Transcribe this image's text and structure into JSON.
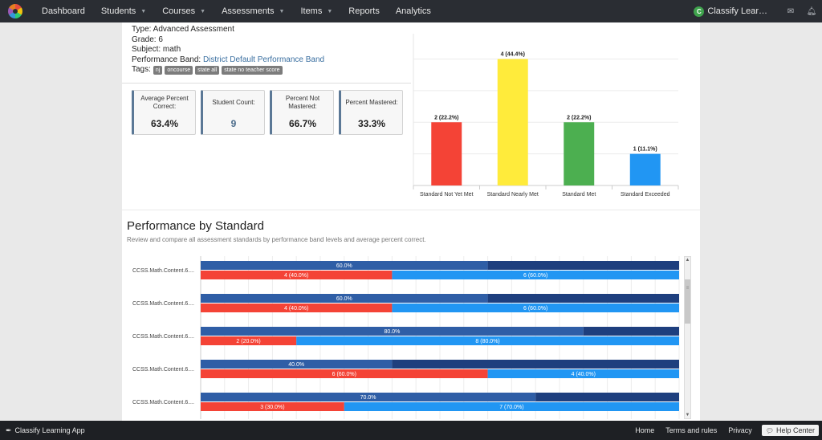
{
  "nav": {
    "items": [
      {
        "label": "Dashboard",
        "caret": false
      },
      {
        "label": "Students",
        "caret": true
      },
      {
        "label": "Courses",
        "caret": true
      },
      {
        "label": "Assessments",
        "caret": true
      },
      {
        "label": "Items",
        "caret": true
      },
      {
        "label": "Reports",
        "caret": false
      },
      {
        "label": "Analytics",
        "caret": false
      }
    ],
    "user_initial": "C",
    "user_name": "Classify Lear…",
    "icons": [
      "mail-icon",
      "bell-icon"
    ]
  },
  "assessment": {
    "type_line": "Type: Advanced Assessment",
    "grade_line": "Grade: 6",
    "subject_line": "Subject: math",
    "band_label": "Performance Band: ",
    "band_link": "District Default Performance Band",
    "tags_label": "Tags:",
    "tags": [
      "nj",
      "oncourse",
      "state all",
      "state no teacher score"
    ]
  },
  "stats": [
    {
      "label": "Average Percent Correct:",
      "value": "63.4%",
      "blue": false
    },
    {
      "label": "Student Count:",
      "value": "9",
      "blue": true
    },
    {
      "label": "Percent Not Mastered:",
      "value": "66.7%",
      "blue": false
    },
    {
      "label": "Percent Mastered:",
      "value": "33.3%",
      "blue": false
    }
  ],
  "performance": {
    "title": "Performance by Standard",
    "subtitle": "Review and compare all assessment standards by performance band levels and average percent correct."
  },
  "footer": {
    "brand": "Classify Learning App",
    "links": [
      "Home",
      "Terms and rules",
      "Privacy"
    ],
    "help": "Help Center"
  },
  "colors": {
    "red": "#f44336",
    "yellow": "#ffeb3b",
    "green": "#4caf50",
    "light_blue": "#2196f3",
    "dark_blue": "#1e3f7e",
    "mid_blue": "#2f5ea6"
  },
  "chart_data": [
    {
      "type": "bar",
      "categories": [
        "Standard Not Yet Met",
        "Standard Nearly Met",
        "Standard Met",
        "Standard Exceeded"
      ],
      "values": [
        2,
        4,
        2,
        1
      ],
      "data_labels": [
        "2 (22.2%)",
        "4 (44.4%)",
        "2 (22.2%)",
        "1 (11.1%)"
      ],
      "colors": [
        "#f44336",
        "#ffeb3b",
        "#4caf50",
        "#2196f3"
      ],
      "ylim": [
        0,
        4.8
      ],
      "grid": true
    },
    {
      "type": "bar",
      "orientation": "horizontal-stacked",
      "categories": [
        "CCSS.Math.Content.6....",
        "CCSS.Math.Content.6....",
        "CCSS.Math.Content.6....",
        "CCSS.Math.Content.6....",
        "CCSS.Math.Content.6...."
      ],
      "percent_correct": [
        60,
        60,
        80,
        40,
        70
      ],
      "percent_correct_labels": [
        "60.0%",
        "60.0%",
        "80.0%",
        "40.0%",
        "70.0%"
      ],
      "not_mastered": [
        4,
        4,
        2,
        6,
        3
      ],
      "not_mastered_labels": [
        "4 (40.0%)",
        "4 (40.0%)",
        "2 (20.0%)",
        "6 (60.0%)",
        "3 (30.0%)"
      ],
      "mastered": [
        6,
        6,
        8,
        4,
        7
      ],
      "mastered_labels": [
        "6 (60.0%)",
        "6 (60.0%)",
        "8 (80.0%)",
        "4 (40.0%)",
        "7 (70.0%)"
      ],
      "xlim": [
        0,
        100
      ],
      "grid": true
    }
  ]
}
